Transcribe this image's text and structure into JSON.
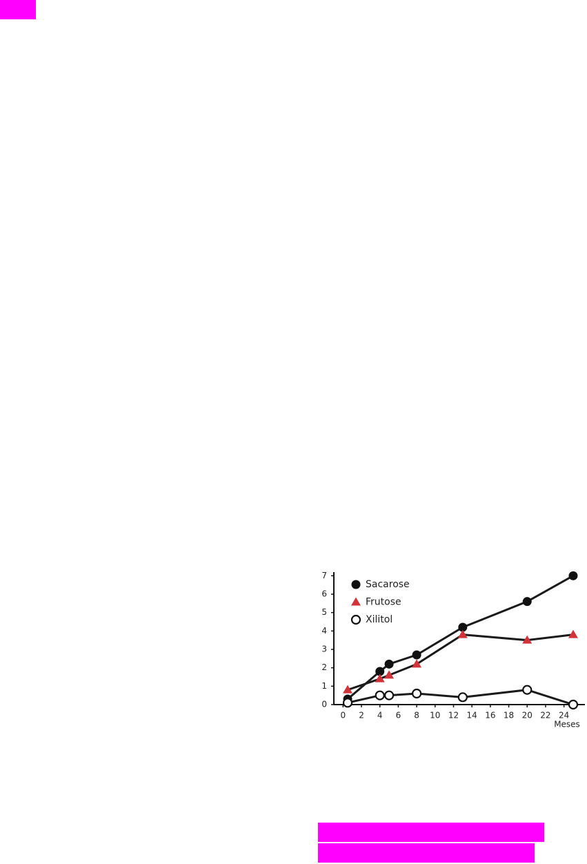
{
  "chart_data": {
    "type": "line",
    "x_label": "Meses",
    "xlim": [
      -1,
      26.5
    ],
    "xticks": [
      0,
      2,
      4,
      6,
      8,
      10,
      12,
      14,
      16,
      18,
      20,
      22,
      24
    ],
    "ylim": [
      0,
      7.2
    ],
    "yticks": [
      0,
      1,
      2,
      3,
      4,
      5,
      6,
      7
    ],
    "line_color": "#1a1a1a",
    "series": [
      {
        "name": "Sacarose",
        "color": "#111111",
        "marker": "filled-circle",
        "x": [
          0.5,
          4,
          5,
          8,
          13,
          20,
          25
        ],
        "values": [
          0.3,
          1.8,
          2.2,
          2.7,
          4.2,
          5.6,
          7.0
        ]
      },
      {
        "name": "Frutose",
        "color": "#d0343a",
        "marker": "triangle",
        "x": [
          0.5,
          4,
          5,
          8,
          13,
          20,
          25
        ],
        "values": [
          0.8,
          1.4,
          1.6,
          2.2,
          3.8,
          3.5,
          3.8
        ]
      },
      {
        "name": "Xilitol",
        "color": "#ffffff",
        "marker": "open-circle",
        "x": [
          0.5,
          4,
          5,
          8,
          13,
          20,
          25
        ],
        "values": [
          0.1,
          0.5,
          0.5,
          0.6,
          0.4,
          0.8,
          0.0
        ]
      }
    ]
  }
}
